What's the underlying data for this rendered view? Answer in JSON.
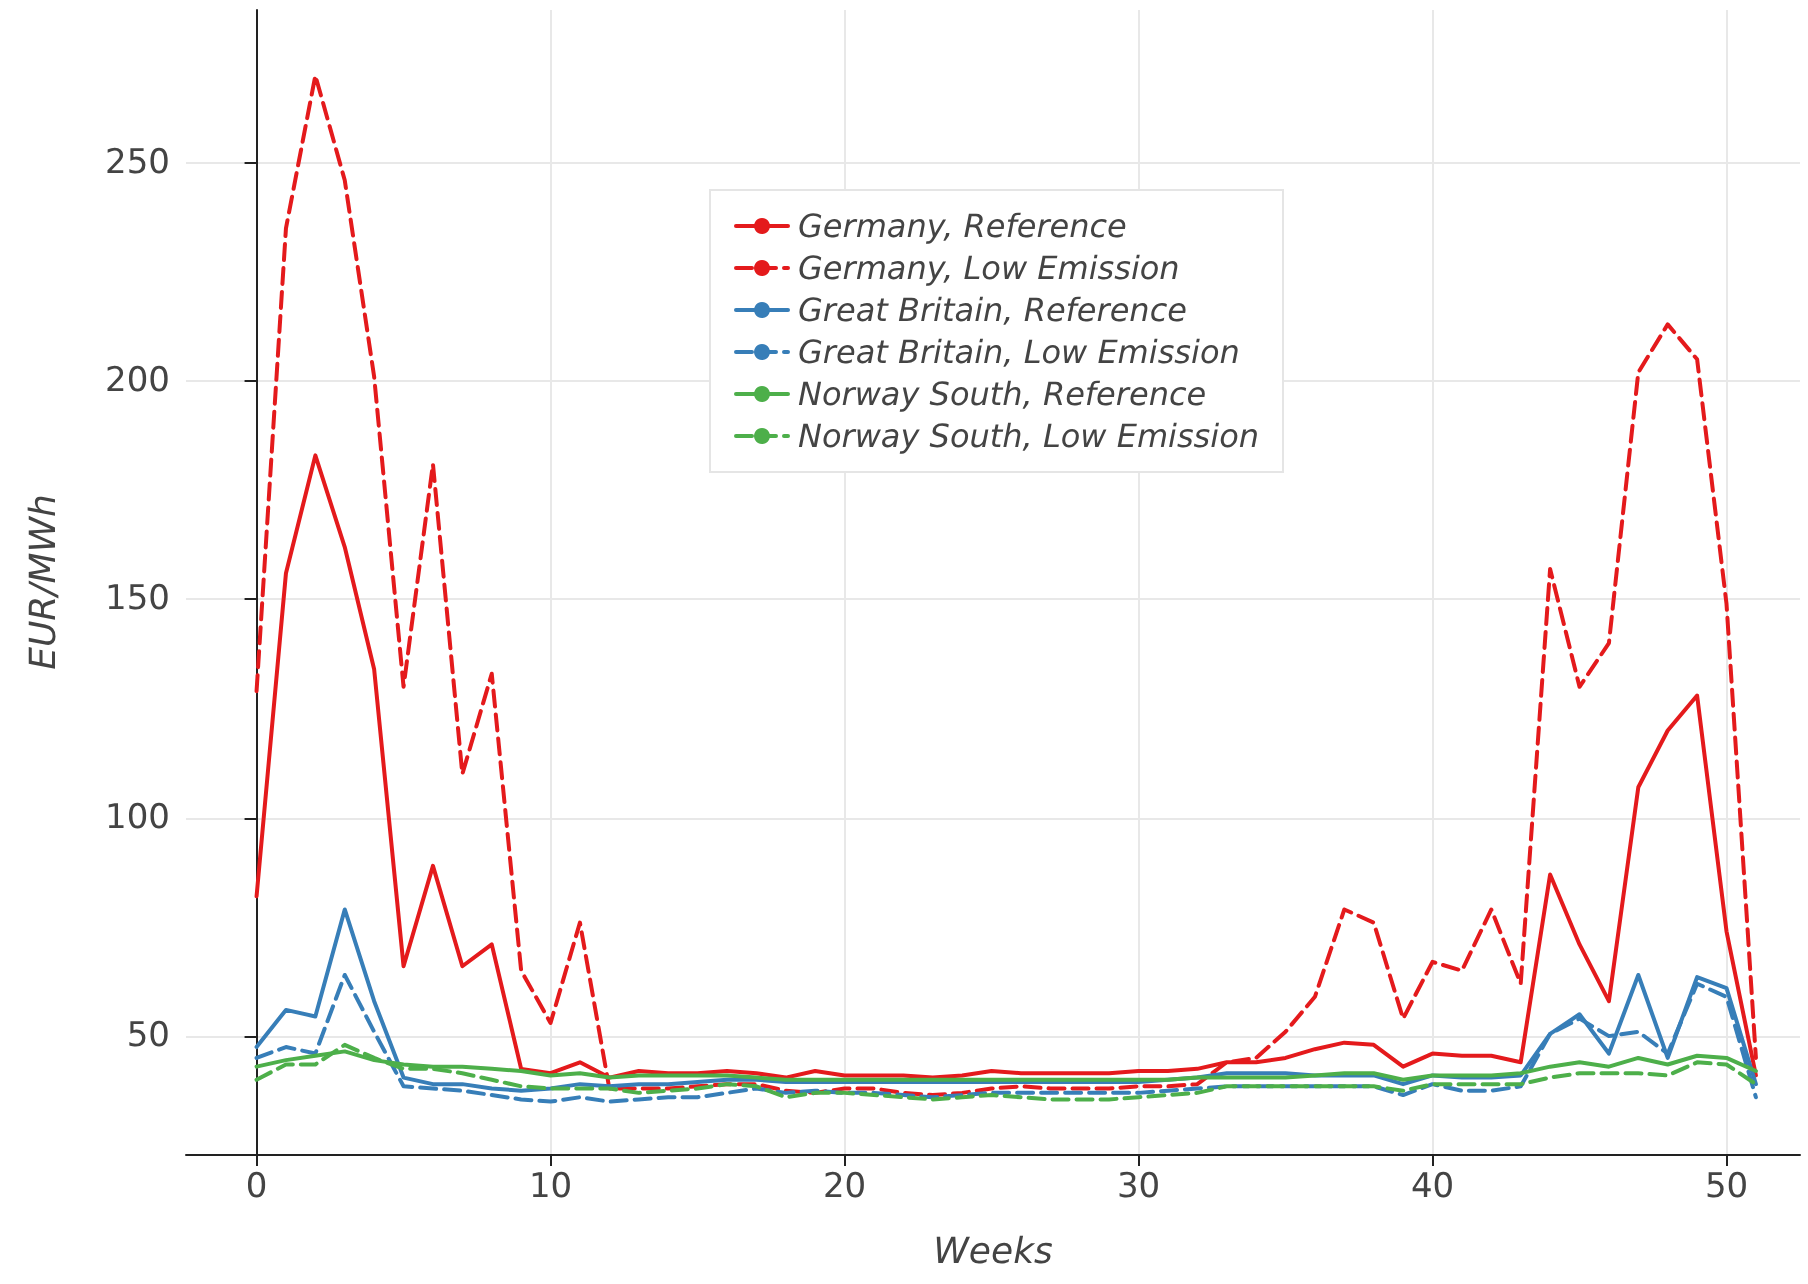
{
  "chart_data": {
    "type": "line",
    "xlabel": "Weeks",
    "ylabel": "EUR/MWh",
    "x": [
      0,
      1,
      2,
      3,
      4,
      5,
      6,
      7,
      8,
      9,
      10,
      11,
      12,
      13,
      14,
      15,
      16,
      17,
      18,
      19,
      20,
      21,
      22,
      23,
      24,
      25,
      26,
      27,
      28,
      29,
      30,
      31,
      32,
      33,
      34,
      35,
      36,
      37,
      38,
      39,
      40,
      41,
      42,
      43,
      44,
      45,
      46,
      47,
      48,
      49,
      50,
      51
    ],
    "xlim": [
      -2.4,
      52.5
    ],
    "xticks": [
      0,
      10,
      20,
      30,
      40,
      50
    ],
    "ylim": [
      23,
      285
    ],
    "yticks": [
      50,
      100,
      150,
      200,
      250
    ],
    "grid": true,
    "legend": "top",
    "marker": "none",
    "series": [
      {
        "name": "Germany, Reference",
        "color": "#e41a1c",
        "line_style": "solid",
        "values": [
          82,
          156,
          183,
          162,
          134,
          66,
          89,
          66,
          71,
          42.5,
          41.5,
          44,
          40.5,
          42,
          41.5,
          41.5,
          42,
          41.5,
          40.5,
          42,
          41,
          41,
          41,
          40.5,
          41,
          42,
          41.5,
          41.5,
          41.5,
          41.5,
          42,
          42,
          42.5,
          44,
          44,
          45,
          47,
          48.5,
          48,
          43,
          46,
          45.5,
          45.5,
          44,
          87,
          71,
          58,
          107,
          120,
          128,
          74,
          41
        ]
      },
      {
        "name": "Germany, Low Emission",
        "color": "#e41a1c",
        "line_style": "dashed",
        "values": [
          129,
          235,
          270,
          246,
          201,
          130,
          181,
          110,
          133,
          65,
          53,
          76,
          38,
          38,
          38,
          38.5,
          39,
          39,
          37.5,
          37,
          38,
          38,
          37,
          36.5,
          37,
          38,
          38.5,
          38,
          38,
          38,
          38.5,
          38.5,
          39,
          44,
          45,
          51,
          59,
          79,
          76,
          54,
          67,
          65,
          79,
          62,
          157,
          130,
          140,
          202,
          213,
          205,
          149,
          45
        ]
      },
      {
        "name": "Great Britain, Reference",
        "color": "#377eb8",
        "line_style": "solid",
        "values": [
          47.5,
          56,
          54.5,
          79,
          58,
          40.5,
          39,
          39,
          38,
          37.5,
          38,
          39,
          38.5,
          39,
          39,
          39.5,
          40,
          40,
          39.5,
          39.5,
          39.5,
          39.5,
          39.5,
          39.5,
          39.5,
          39.5,
          39.5,
          39.5,
          39.5,
          39.5,
          39.5,
          40,
          40.5,
          41.5,
          41.5,
          41.5,
          41,
          41,
          41,
          39,
          41,
          40.5,
          40.5,
          41,
          50.5,
          55,
          46,
          64,
          45,
          63.5,
          61,
          39
        ]
      },
      {
        "name": "Great Britain, Low Emission",
        "color": "#377eb8",
        "line_style": "dashed",
        "values": [
          45,
          47.5,
          46,
          64,
          51,
          38.5,
          38,
          37.5,
          36.5,
          35.5,
          35,
          36,
          35,
          35.5,
          36,
          36,
          37,
          38,
          37,
          37.5,
          37,
          37,
          36.5,
          36,
          36.5,
          37,
          37,
          37,
          37,
          37,
          37,
          37.5,
          38,
          38.5,
          38.5,
          38.5,
          38.5,
          38.5,
          38.5,
          36.5,
          39,
          37.5,
          37.5,
          38.5,
          50.5,
          54,
          50,
          51,
          46,
          62,
          59,
          36
        ]
      },
      {
        "name": "Norway South, Reference",
        "color": "#4daf4a",
        "line_style": "solid",
        "values": [
          43,
          44.5,
          45.5,
          46.5,
          44.5,
          43.5,
          43,
          43,
          42.5,
          42,
          41,
          41.5,
          40.5,
          41,
          41,
          41,
          41,
          40.5,
          40,
          40,
          40,
          40,
          40,
          40,
          40,
          40,
          40,
          40,
          40,
          40,
          40,
          40,
          40.5,
          40.5,
          40.5,
          40.5,
          41,
          41.5,
          41.5,
          40,
          41,
          41,
          41,
          41.5,
          43,
          44,
          43,
          45,
          43.5,
          45.5,
          45,
          42
        ]
      },
      {
        "name": "Norway South, Low Emission",
        "color": "#4daf4a",
        "line_style": "dashed",
        "values": [
          40,
          43.5,
          43.5,
          48,
          45,
          42.5,
          42.5,
          41.5,
          40,
          38.5,
          38,
          38,
          38,
          37,
          37.5,
          38,
          39,
          38.5,
          36,
          37,
          37,
          36.5,
          36,
          35.5,
          36,
          36.5,
          36,
          35.5,
          35.5,
          35.5,
          36,
          36.5,
          37,
          38.5,
          38.5,
          38.5,
          38.5,
          38.5,
          38.5,
          37.5,
          39,
          39,
          39,
          39,
          40.5,
          41.5,
          41.5,
          41.5,
          41,
          44,
          43.5,
          39
        ]
      }
    ]
  }
}
